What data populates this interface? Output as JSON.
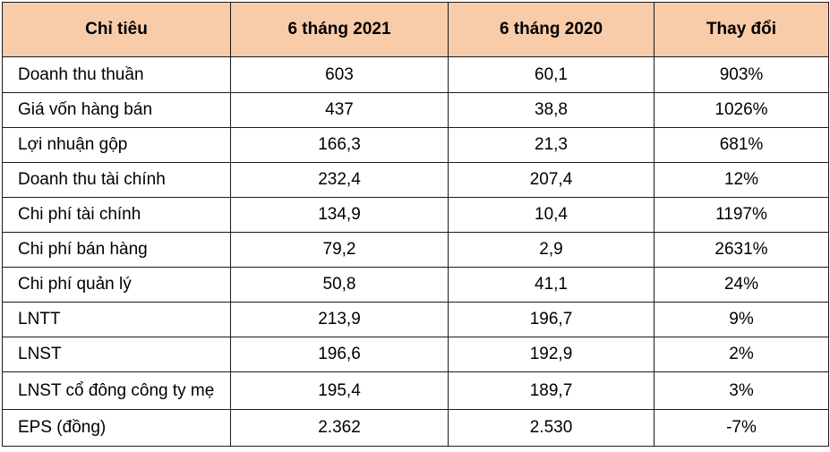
{
  "table": {
    "headers": [
      "Chỉ tiêu",
      "6 tháng 2021",
      "6 tháng 2020",
      "Thay đổi"
    ],
    "rows": [
      [
        "Doanh thu thuần",
        "603",
        "60,1",
        "903%"
      ],
      [
        "Giá vốn hàng bán",
        "437",
        "38,8",
        "1026%"
      ],
      [
        "Lợi nhuận gộp",
        "166,3",
        "21,3",
        "681%"
      ],
      [
        "Doanh thu tài chính",
        "232,4",
        "207,4",
        "12%"
      ],
      [
        "Chi phí tài chính",
        "134,9",
        "10,4",
        "1197%"
      ],
      [
        "Chi phí bán hàng",
        "79,2",
        "2,9",
        "2631%"
      ],
      [
        "Chi phí quản lý",
        "50,8",
        "41,1",
        "24%"
      ],
      [
        "LNTT",
        "213,9",
        "196,7",
        "9%"
      ],
      [
        "LNST",
        "196,6",
        "192,9",
        "2%"
      ],
      [
        "LNST cổ đông công ty mẹ",
        "195,4",
        "189,7",
        "3%"
      ],
      [
        "EPS (đồng)",
        "2.362",
        "2.530",
        "-7%"
      ]
    ]
  },
  "colors": {
    "header_background": "#f8cba9",
    "border": "#1a1a1a"
  }
}
